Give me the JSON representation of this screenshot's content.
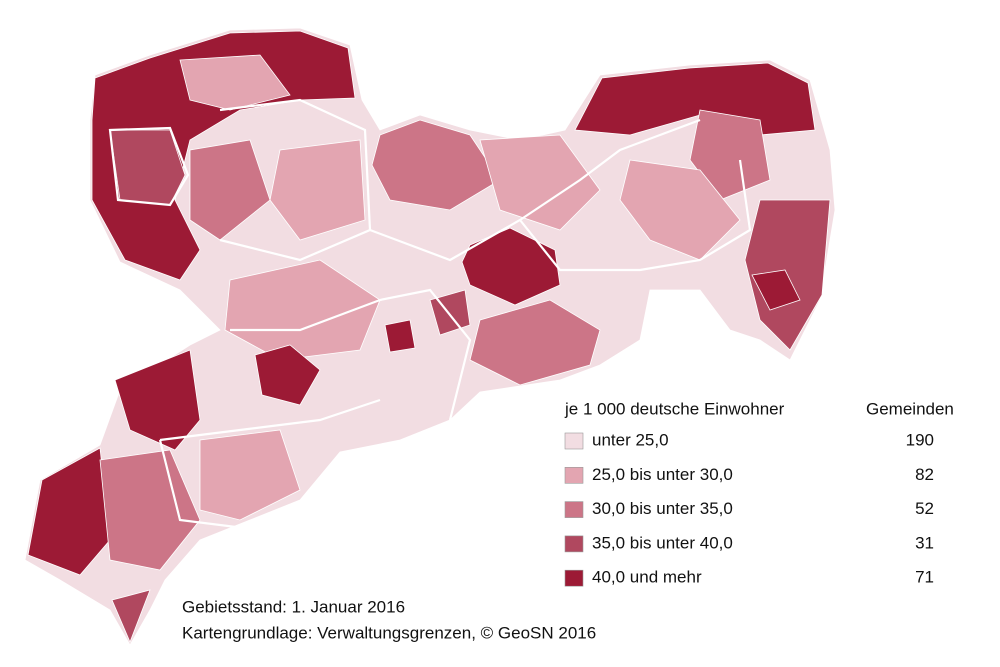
{
  "legend": {
    "title": "je 1 000 deutsche Einwohner",
    "count_header": "Gemeinden",
    "entries": [
      {
        "label": "unter 25,0",
        "count": "190",
        "color": "#f2dde2"
      },
      {
        "label": "25,0 bis unter 30,0",
        "count": "82",
        "color": "#e3a5b1"
      },
      {
        "label": "30,0 bis unter 35,0",
        "count": "52",
        "color": "#cc7587"
      },
      {
        "label": "35,0 bis unter 40,0",
        "count": "31",
        "color": "#b0485f"
      },
      {
        "label": "40,0 und mehr",
        "count": "71",
        "color": "#9c1a35"
      }
    ]
  },
  "notes": [
    "Gebietsstand: 1. Januar 2016",
    "Kartengrundlage: Verwaltungsgrenzen, © GeoSN 2016"
  ]
}
